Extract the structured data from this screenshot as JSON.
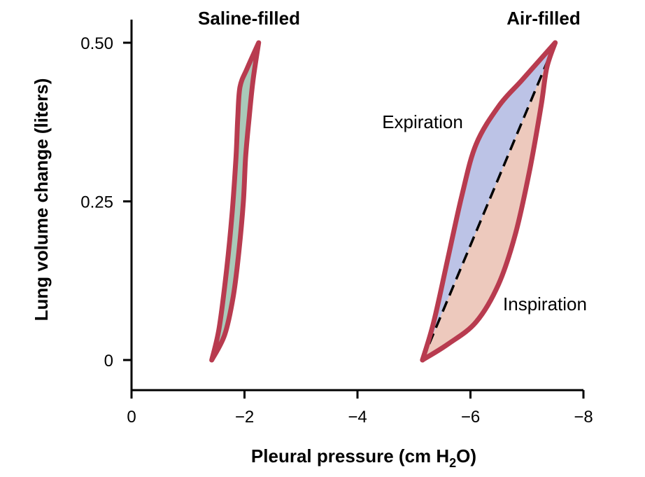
{
  "chart_data": {
    "type": "line",
    "title": "",
    "xlabel_main": "Pleural pressure (cm H",
    "xlabel_sub": "2",
    "xlabel_tail": "O)",
    "ylabel": "Lung volume change (liters)",
    "xlim": [
      0,
      -8
    ],
    "ylim": [
      0,
      0.5
    ],
    "x_ticks": [
      0,
      -2,
      -4,
      -6,
      -8
    ],
    "x_tick_labels": [
      "0",
      "−2",
      "−4",
      "−6",
      "−8"
    ],
    "y_ticks": [
      0,
      0.25,
      0.5
    ],
    "y_tick_labels": [
      "0",
      "0.25",
      "0.50"
    ],
    "grid": false,
    "loops": [
      {
        "label": "Saline-filled",
        "fill_color": "#a9c9b9",
        "edge_color": "#b83b4f",
        "outer": [
          [
            -1.42,
            0.0
          ],
          [
            -1.55,
            0.05
          ],
          [
            -1.68,
            0.14
          ],
          [
            -1.78,
            0.23
          ],
          [
            -1.85,
            0.32
          ],
          [
            -1.88,
            0.38
          ],
          [
            -1.92,
            0.43
          ],
          [
            -2.05,
            0.46
          ],
          [
            -2.25,
            0.5
          ]
        ],
        "inner": [
          [
            -2.25,
            0.5
          ],
          [
            -2.15,
            0.44
          ],
          [
            -2.08,
            0.38
          ],
          [
            -2.02,
            0.32
          ],
          [
            -1.98,
            0.25
          ],
          [
            -1.9,
            0.17
          ],
          [
            -1.8,
            0.1
          ],
          [
            -1.65,
            0.04
          ],
          [
            -1.42,
            0.0
          ]
        ]
      },
      {
        "label": "Air-filled",
        "edge_color": "#b83b4f",
        "expiration": {
          "label": "Expiration",
          "color": "#bcc3e6",
          "points": [
            [
              -5.15,
              0.0
            ],
            [
              -5.35,
              0.06
            ],
            [
              -5.6,
              0.16
            ],
            [
              -5.85,
              0.26
            ],
            [
              -6.1,
              0.34
            ],
            [
              -6.5,
              0.4
            ],
            [
              -6.9,
              0.44
            ],
            [
              -7.25,
              0.475
            ],
            [
              -7.5,
              0.5
            ]
          ]
        },
        "inspiration": {
          "label": "Inspiration",
          "color": "#edc9bd",
          "points": [
            [
              -5.15,
              0.0
            ],
            [
              -5.6,
              0.025
            ],
            [
              -6.1,
              0.06
            ],
            [
              -6.5,
              0.12
            ],
            [
              -6.8,
              0.2
            ],
            [
              -7.05,
              0.3
            ],
            [
              -7.25,
              0.4
            ],
            [
              -7.35,
              0.46
            ],
            [
              -7.5,
              0.5
            ]
          ]
        },
        "midline": [
          [
            -5.15,
            0.0
          ],
          [
            -7.5,
            0.5
          ]
        ]
      }
    ]
  }
}
